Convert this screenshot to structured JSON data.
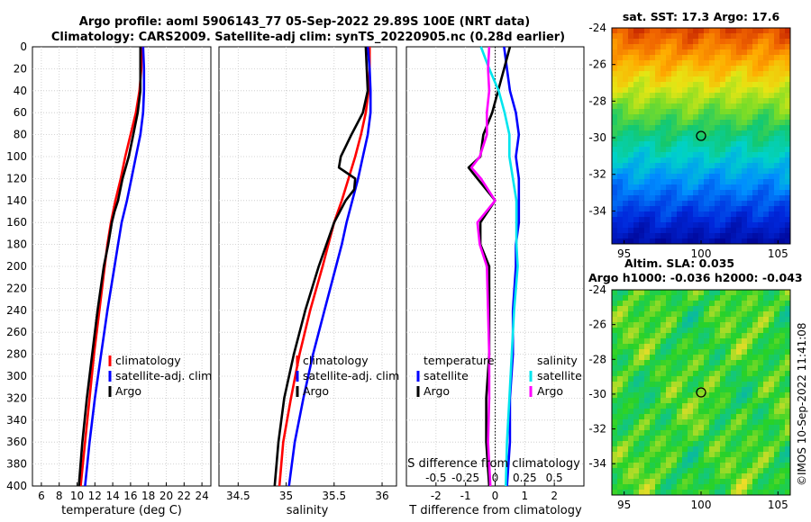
{
  "header": {
    "title_line1": "Argo profile: aoml 5906143_77 05-Sep-2022 29.89S 100E (NRT data)",
    "title_line2": "Climatology: CARS2009. Satellite-adj clim: synTS_20220905.nc (0.28d earlier)"
  },
  "colors": {
    "climatology": "#ff0000",
    "satellite": "#0000ff",
    "argo": "#000000",
    "satellite_s": "#00e5ee",
    "argo_s": "#ff00ff"
  },
  "chart_data": [
    {
      "id": "temperature",
      "type": "line",
      "xlabel": "temperature (deg C)",
      "ylabel": "",
      "xlim": [
        5,
        25
      ],
      "ylim": [
        400,
        0
      ],
      "xticks": [
        6,
        8,
        10,
        12,
        14,
        16,
        18,
        20,
        22,
        24
      ],
      "yticks": [
        0,
        20,
        40,
        60,
        80,
        100,
        120,
        140,
        160,
        180,
        200,
        220,
        240,
        260,
        280,
        300,
        320,
        340,
        360,
        380,
        400
      ],
      "grid": true,
      "legend": {
        "position": "bottom-right",
        "entries": [
          "climatology",
          "satellite-adj. clim",
          "Argo"
        ]
      },
      "series": [
        {
          "name": "climatology",
          "color": "#ff0000",
          "depth": [
            0,
            20,
            40,
            60,
            80,
            100,
            120,
            140,
            160,
            180,
            200,
            240,
            280,
            320,
            360,
            400
          ],
          "values": [
            17.2,
            17.2,
            17.0,
            16.6,
            16.0,
            15.4,
            14.9,
            14.3,
            13.8,
            13.4,
            13.1,
            12.5,
            11.9,
            11.4,
            10.9,
            10.4
          ]
        },
        {
          "name": "satellite-adj. clim",
          "color": "#0000ff",
          "depth": [
            0,
            20,
            40,
            60,
            80,
            100,
            120,
            140,
            160,
            180,
            200,
            240,
            280,
            320,
            360,
            400
          ],
          "values": [
            17.4,
            17.5,
            17.5,
            17.4,
            17.1,
            16.6,
            16.1,
            15.6,
            15.0,
            14.6,
            14.2,
            13.4,
            12.7,
            12.0,
            11.4,
            10.9
          ]
        },
        {
          "name": "Argo",
          "color": "#000000",
          "depth": [
            0,
            20,
            40,
            60,
            80,
            100,
            120,
            140,
            150,
            160,
            180,
            200,
            240,
            280,
            320,
            360,
            400
          ],
          "values": [
            17.1,
            17.1,
            17.1,
            16.8,
            16.3,
            15.8,
            15.1,
            14.6,
            14.2,
            13.9,
            13.5,
            13.0,
            12.3,
            11.7,
            11.1,
            10.6,
            10.2
          ]
        }
      ]
    },
    {
      "id": "salinity",
      "type": "line",
      "xlabel": "salinity",
      "ylabel": "",
      "xlim": [
        34.3,
        36.15
      ],
      "ylim": [
        400,
        0
      ],
      "xticks": [
        34.5,
        35,
        35.5,
        36
      ],
      "grid": true,
      "legend": {
        "position": "bottom-right",
        "entries": [
          "climatology",
          "satellite-adj. clim",
          "Argo"
        ]
      },
      "series": [
        {
          "name": "climatology",
          "color": "#ff0000",
          "depth": [
            0,
            20,
            40,
            60,
            80,
            100,
            120,
            140,
            160,
            180,
            200,
            240,
            280,
            320,
            360,
            400
          ],
          "values": [
            35.87,
            35.87,
            35.86,
            35.83,
            35.78,
            35.72,
            35.65,
            35.58,
            35.5,
            35.44,
            35.38,
            35.25,
            35.14,
            35.05,
            34.97,
            34.93
          ]
        },
        {
          "name": "satellite-adj. clim",
          "color": "#0000ff",
          "depth": [
            0,
            20,
            40,
            60,
            80,
            100,
            120,
            140,
            160,
            180,
            200,
            240,
            280,
            320,
            360,
            400
          ],
          "values": [
            35.85,
            35.87,
            35.88,
            35.88,
            35.85,
            35.8,
            35.75,
            35.69,
            35.63,
            35.58,
            35.52,
            35.4,
            35.28,
            35.18,
            35.09,
            35.03
          ]
        },
        {
          "name": "Argo",
          "color": "#000000",
          "depth": [
            0,
            20,
            40,
            60,
            80,
            100,
            110,
            120,
            130,
            140,
            160,
            180,
            200,
            240,
            280,
            320,
            360,
            400
          ],
          "values": [
            35.83,
            35.84,
            35.85,
            35.8,
            35.68,
            35.57,
            35.55,
            35.72,
            35.71,
            35.62,
            35.5,
            35.42,
            35.34,
            35.2,
            35.08,
            34.98,
            34.92,
            34.88
          ]
        }
      ]
    },
    {
      "id": "difference",
      "type": "line",
      "xlabel": "T difference from climatology",
      "xlabel_top": "S difference from climatology",
      "ylabel": "",
      "xlim": [
        -3,
        3
      ],
      "ylim": [
        400,
        0
      ],
      "xticks": [
        -2,
        -1,
        0,
        1,
        2
      ],
      "xticks_top": [
        "-0.5",
        "-0.25",
        "0",
        "0.25",
        "0.5"
      ],
      "grid": true,
      "zero_line": 0,
      "legend": {
        "temperature_title": "temperature",
        "salinity_title": "salinity",
        "entries_t": [
          "satellite",
          "Argo"
        ],
        "entries_s": [
          "satellite",
          "Argo"
        ]
      },
      "series": [
        {
          "name": "satellite (temperature)",
          "color": "#0000ff",
          "depth": [
            0,
            20,
            40,
            60,
            80,
            100,
            120,
            140,
            160,
            180,
            200,
            240,
            280,
            320,
            360,
            400
          ],
          "values": [
            0.3,
            0.4,
            0.5,
            0.7,
            0.8,
            0.7,
            0.8,
            0.8,
            0.8,
            0.7,
            0.7,
            0.6,
            0.6,
            0.5,
            0.5,
            0.4
          ]
        },
        {
          "name": "Argo (temperature)",
          "color": "#000000",
          "depth": [
            0,
            20,
            40,
            60,
            80,
            100,
            110,
            120,
            140,
            160,
            180,
            200,
            240,
            280,
            320,
            360,
            400
          ],
          "values": [
            0.5,
            0.3,
            0.1,
            -0.1,
            -0.4,
            -0.5,
            -0.9,
            -0.6,
            0.0,
            -0.5,
            -0.5,
            -0.2,
            -0.2,
            -0.2,
            -0.3,
            -0.3,
            -0.2
          ]
        },
        {
          "name": "satellite (salinity)",
          "color": "#00e5ee",
          "depth": [
            0,
            20,
            40,
            60,
            80,
            100,
            120,
            140,
            160,
            180,
            200,
            240,
            280,
            320,
            360,
            400
          ],
          "values": [
            -0.12,
            -0.05,
            0.03,
            0.08,
            0.12,
            0.12,
            0.15,
            0.18,
            0.18,
            0.18,
            0.19,
            0.16,
            0.14,
            0.12,
            0.1,
            0.09
          ]
        },
        {
          "name": "Argo (salinity)",
          "color": "#ff00ff",
          "depth": [
            0,
            20,
            40,
            60,
            80,
            100,
            110,
            120,
            140,
            160,
            180,
            200,
            240,
            280,
            320,
            360,
            400
          ],
          "values": [
            -0.05,
            -0.06,
            -0.05,
            -0.07,
            -0.07,
            -0.13,
            -0.2,
            -0.12,
            0.0,
            -0.15,
            -0.13,
            -0.07,
            -0.06,
            -0.05,
            -0.05,
            -0.06,
            -0.04
          ]
        }
      ]
    },
    {
      "id": "sst_map",
      "type": "heatmap",
      "title": "sat. SST: 17.3 Argo: 17.6",
      "xticks": [
        95,
        100,
        105
      ],
      "yticks": [
        -24,
        -26,
        -28,
        -30,
        -32,
        -34
      ],
      "xlim": [
        94.2,
        105.8
      ],
      "ylim": [
        -35.8,
        -24
      ],
      "marker": {
        "lon": 100,
        "lat": -29.9
      }
    },
    {
      "id": "sla_map",
      "type": "heatmap",
      "title_line1": "Altim. SLA: 0.035",
      "title_line2": "Argo h1000: -0.036 h2000: -0.043",
      "xticks": [
        95,
        100,
        105
      ],
      "yticks": [
        -24,
        -26,
        -28,
        -30,
        -32,
        -34
      ],
      "xlim": [
        94.2,
        105.8
      ],
      "ylim": [
        -35.8,
        -24
      ],
      "marker": {
        "lon": 100,
        "lat": -29.9
      }
    }
  ],
  "footer": {
    "stamp": "©IMOS 10-Sep-2022 11:41:08"
  }
}
